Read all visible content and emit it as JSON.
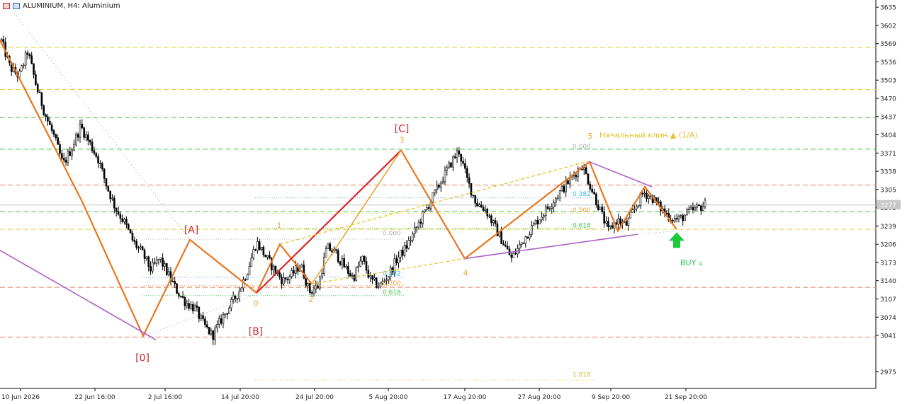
{
  "window": {
    "title": "ALUMINIUM, H4:  Aluminium",
    "icons": [
      "chart-window-icon",
      "chart-type-icon"
    ]
  },
  "chart_data": {
    "type": "candlestick",
    "symbol": "ALUMINIUM",
    "timeframe": "H4",
    "description": "Aluminium",
    "grid": false,
    "ylim": [
      2945,
      3648
    ],
    "y_ticks": [
      "3635",
      "3602",
      "3569",
      "3536",
      "3503",
      "3470",
      "3437",
      "3404",
      "3371",
      "3338",
      "3305",
      "3272",
      "3239",
      "3206",
      "3173",
      "3140",
      "3107",
      "3074",
      "3041",
      "2975"
    ],
    "x_ticks": [
      "10 Jun 2026",
      "22 Jun 16:00",
      "2 Jul 16:00",
      "14 Jul 20:00",
      "24 Jul 20:00",
      "5 Aug 20:00",
      "17 Aug 20:00",
      "27 Aug 20:00",
      "9 Sep 20:00",
      "21 Sep 20:00"
    ],
    "current_price": "3277",
    "price_path": [
      3574,
      3525,
      3510,
      3555,
      3490,
      3440,
      3400,
      3350,
      3380,
      3420,
      3390,
      3360,
      3310,
      3270,
      3245,
      3210,
      3190,
      3160,
      3180,
      3150,
      3120,
      3100,
      3090,
      3060,
      3040,
      3070,
      3095,
      3120,
      3160,
      3210,
      3185,
      3160,
      3140,
      3150,
      3170,
      3120,
      3130,
      3200,
      3190,
      3165,
      3145,
      3180,
      3140,
      3130,
      3150,
      3180,
      3200,
      3230,
      3260,
      3290,
      3320,
      3350,
      3376,
      3320,
      3280,
      3270,
      3240,
      3210,
      3180,
      3205,
      3230,
      3250,
      3270,
      3290,
      3310,
      3330,
      3350,
      3310,
      3270,
      3230,
      3250,
      3240,
      3270,
      3300,
      3290,
      3270,
      3255,
      3250,
      3262,
      3270,
      3278
    ],
    "horizontal_levels": [
      {
        "price": 3562,
        "color": "#e3d23a",
        "style": "dashed"
      },
      {
        "price": 3486,
        "color": "#e3d23a",
        "style": "dashed"
      },
      {
        "price": 3435,
        "color": "#43c34a",
        "style": "dashed"
      },
      {
        "price": 3378,
        "color": "#43c34a",
        "style": "dashed"
      },
      {
        "price": 3313,
        "color": "#ec7b62",
        "style": "dashed"
      },
      {
        "price": 3265,
        "color": "#43c34a",
        "style": "dashed"
      },
      {
        "price": 3233,
        "color": "#e3d23a",
        "style": "dashed"
      },
      {
        "price": 3128,
        "color": "#ec7b62",
        "style": "dashed"
      },
      {
        "price": 3038,
        "color": "#ec7b62",
        "style": "dashed"
      }
    ],
    "wave_labels": [
      {
        "text": "[A]",
        "color": "#d32a2a"
      },
      {
        "text": "[B]",
        "color": "#d32a2a"
      },
      {
        "text": "[C]",
        "color": "#d32a2a"
      },
      {
        "text": "[0]",
        "color": "#d32a2a"
      },
      {
        "text": "0",
        "color": "#e9a23b"
      },
      {
        "text": "1",
        "color": "#e9a23b"
      },
      {
        "text": "2",
        "color": "#e9a23b"
      },
      {
        "text": "3",
        "color": "#e9a23b"
      },
      {
        "text": "4",
        "color": "#e9a23b"
      },
      {
        "text": "5",
        "color": "#e9a23b"
      }
    ],
    "fib_labels": [
      "0.000",
      "0.382",
      "0.500",
      "0.618",
      "0.000",
      "0.382",
      "0.500",
      "0.618",
      "1.618"
    ],
    "annotations": {
      "wedge_label": "Начальный клин ▲ (1/A)",
      "signal": "BUY ▵"
    },
    "colors": {
      "candle": "#000000",
      "impulse_orange": "#e8761e",
      "impulse_red": "#d8262b",
      "channel_purple": "#ae5fc8",
      "channel_yellow": "#e7c52a",
      "arrow_green": "#1ec93a",
      "text_buy": "#27c24a",
      "current_price_bg": "#c8c8c8"
    }
  }
}
